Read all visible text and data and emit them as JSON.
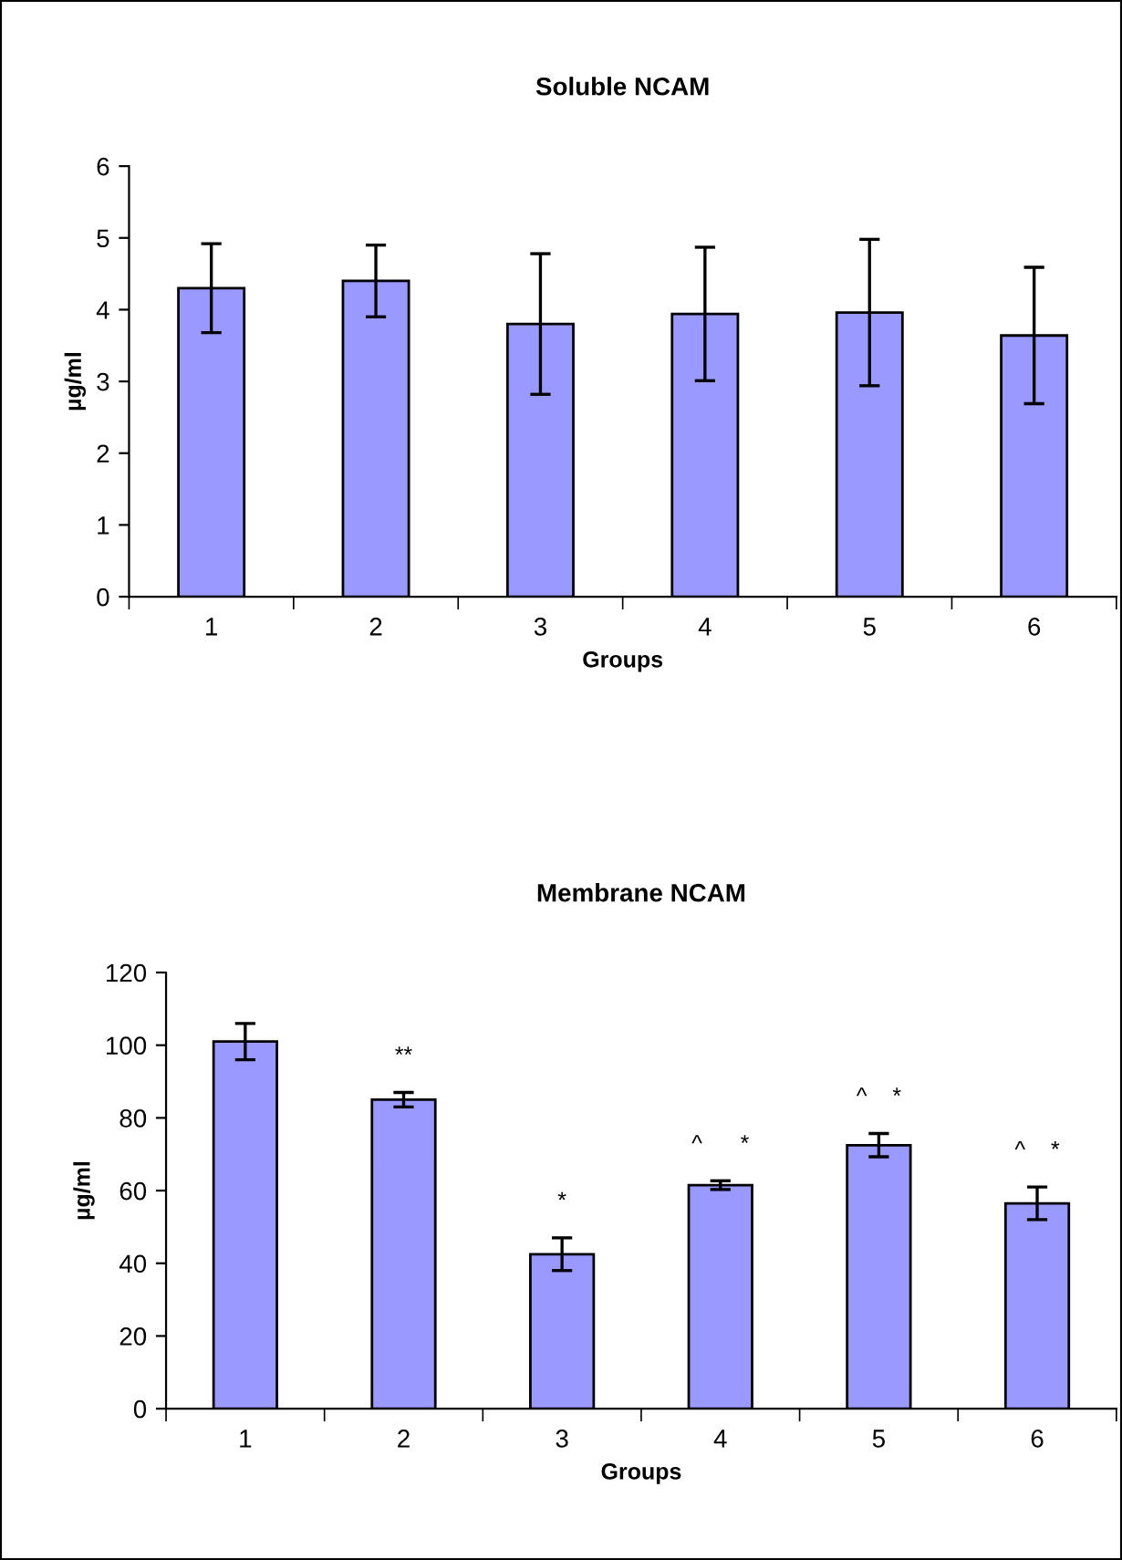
{
  "chart_data": [
    {
      "type": "bar",
      "title": "Soluble NCAM",
      "xlabel": "Groups",
      "ylabel": "µg/ml",
      "categories": [
        "1",
        "2",
        "3",
        "4",
        "5",
        "6"
      ],
      "values": [
        4.3,
        4.4,
        3.8,
        3.94,
        3.96,
        3.64
      ],
      "errors": [
        0.62,
        0.5,
        0.98,
        0.93,
        1.02,
        0.95
      ],
      "color": "#9999ff",
      "ylim": [
        0,
        6
      ],
      "yticks": [
        0,
        1,
        2,
        3,
        4,
        5,
        6
      ],
      "grid": false,
      "legend": false
    },
    {
      "type": "bar",
      "title": "Membrane NCAM",
      "xlabel": "Groups",
      "ylabel": "µg/ml",
      "categories": [
        "1",
        "2",
        "3",
        "4",
        "5",
        "6"
      ],
      "values": [
        101,
        85,
        42.5,
        61.5,
        72.5,
        56.5
      ],
      "errors": [
        5,
        2,
        4.5,
        1.2,
        3.2,
        4.5
      ],
      "color": "#9999ff",
      "ylim": [
        0,
        120
      ],
      "yticks": [
        0,
        20,
        40,
        60,
        80,
        100,
        120
      ],
      "grid": false,
      "legend": false,
      "annotations": [
        {
          "text": "**",
          "x": "2",
          "y": 87
        },
        {
          "text": "*",
          "x": "3",
          "y": 47
        },
        {
          "text": "^      *",
          "x": "4",
          "y": 62.7
        },
        {
          "text": "^    *",
          "x": "5",
          "y": 75.7
        },
        {
          "text": "^    *",
          "x": "6",
          "y": 61
        }
      ]
    }
  ]
}
